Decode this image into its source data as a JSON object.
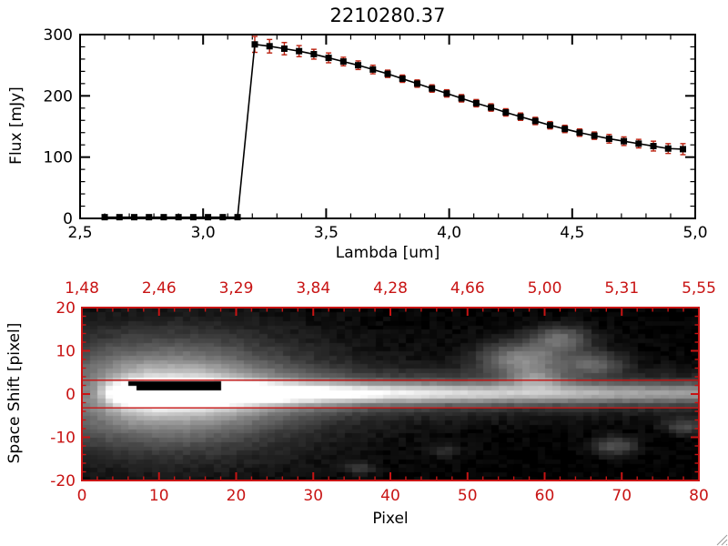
{
  "window": {
    "background": "#ffffff"
  },
  "colors": {
    "axis_black": "#000000",
    "axis_red": "#c81414",
    "errorbar_red": "#bb2211"
  },
  "chart_data": [
    {
      "type": "line",
      "title": "2210280.37",
      "xlabel": "Lambda [um]",
      "ylabel": "Flux [mJy]",
      "xlim": [
        2.5,
        5.0
      ],
      "ylim": [
        0,
        300
      ],
      "grid": false,
      "legend": "none",
      "marker": "filled-square",
      "line_color": "#000000",
      "marker_color": "#000000",
      "errorbar_color": "#bb2211",
      "xticks": {
        "values": [
          2.5,
          3.0,
          3.5,
          4.0,
          4.5,
          5.0
        ],
        "labels": [
          "2,5",
          "3,0",
          "3,5",
          "4,0",
          "4,5",
          "5,0"
        ]
      },
      "yticks": {
        "values": [
          0,
          100,
          200,
          300
        ],
        "labels": [
          "0",
          "100",
          "200",
          "300"
        ]
      },
      "x_minor_step": 0.1,
      "y_minor_step": 20,
      "x": [
        2.6,
        2.66,
        2.72,
        2.78,
        2.84,
        2.9,
        2.96,
        3.02,
        3.08,
        3.14,
        3.21,
        3.27,
        3.33,
        3.39,
        3.45,
        3.51,
        3.57,
        3.63,
        3.69,
        3.75,
        3.81,
        3.87,
        3.93,
        3.99,
        4.05,
        4.11,
        4.17,
        4.23,
        4.29,
        4.35,
        4.41,
        4.47,
        4.53,
        4.59,
        4.65,
        4.71,
        4.77,
        4.83,
        4.89,
        4.95
      ],
      "y": [
        2,
        2,
        2,
        2,
        2,
        2,
        2,
        2,
        2,
        2,
        284,
        281,
        277,
        273,
        268,
        262,
        256,
        250,
        243,
        236,
        228,
        220,
        212,
        204,
        196,
        188,
        181,
        173,
        166,
        159,
        152,
        146,
        140,
        135,
        130,
        126,
        122,
        118,
        114,
        113
      ],
      "yerr": [
        3,
        3,
        3,
        3,
        3,
        3,
        3,
        3,
        3,
        3,
        13,
        11,
        10,
        9,
        8,
        8,
        7,
        7,
        7,
        6,
        6,
        6,
        6,
        6,
        6,
        6,
        6,
        6,
        6,
        6,
        6,
        6,
        6,
        6,
        7,
        7,
        7,
        8,
        8,
        9
      ]
    },
    {
      "type": "heatmap",
      "title": "",
      "xlabel": "Pixel",
      "ylabel": "Space Shift [pixel]",
      "xlim": [
        0,
        80
      ],
      "ylim": [
        -20,
        20
      ],
      "colormap": "grayscale",
      "axis_color": "#c81414",
      "xticks": {
        "values": [
          0,
          10,
          20,
          30,
          40,
          50,
          60,
          70,
          80
        ],
        "labels": [
          "0",
          "10",
          "20",
          "30",
          "40",
          "50",
          "60",
          "70",
          "80"
        ]
      },
      "yticks": {
        "values": [
          -20,
          -10,
          0,
          10,
          20
        ],
        "labels": [
          "-20",
          "-10",
          "0",
          "10",
          "20"
        ]
      },
      "x_minor_step": 2,
      "y_minor_step": 2,
      "top_axis_labels": [
        "1,48",
        "2,46",
        "3,29",
        "3,84",
        "4,28",
        "4,66",
        "5,00",
        "5,31",
        "5,55"
      ],
      "aperture_lines": [
        3.2,
        -3.2
      ],
      "trace_model": {
        "center_y": 0.3,
        "core_sigma": 1.6,
        "mid_sigma": 3.6,
        "mid_amp_frac": 0.35,
        "halo_sigma": 7.5,
        "halo_x_center": 11,
        "halo_x_sigma": 10,
        "halo_amp": 0.55,
        "outer_halo_amp": 0.17,
        "outer_halo_x_sigma": 18,
        "outer_halo_y_sigma": 11,
        "gamma": 0.85,
        "core_profile": [
          [
            0,
            0
          ],
          [
            2,
            0.05
          ],
          [
            4,
            0.45
          ],
          [
            6,
            0.8
          ],
          [
            8,
            0.98
          ],
          [
            16,
            1.0
          ],
          [
            22,
            0.9
          ],
          [
            30,
            0.78
          ],
          [
            40,
            0.68
          ],
          [
            50,
            0.6
          ],
          [
            60,
            0.53
          ],
          [
            70,
            0.46
          ],
          [
            80,
            0.41
          ]
        ]
      },
      "saturated_black_regions": [
        {
          "x0": 7.0,
          "x1": 15.0,
          "y0": 0.9,
          "y1": 3.1
        },
        {
          "x0": 9.0,
          "x1": 18.0,
          "y0": 1.8,
          "y1": 3.0
        },
        {
          "x0": 5.8,
          "x1": 7.0,
          "y0": 1.6,
          "y1": 2.8
        },
        {
          "x0": 15.0,
          "x1": 17.5,
          "y0": 0.9,
          "y1": 1.8
        }
      ],
      "faint_blobs": [
        {
          "x": 57.0,
          "y": 8.0,
          "sx": 3.5,
          "sy": 2.5,
          "amp": 0.38
        },
        {
          "x": 62.0,
          "y": 13.0,
          "sx": 2.5,
          "sy": 2.0,
          "amp": 0.3
        },
        {
          "x": 66.5,
          "y": 7.0,
          "sx": 2.5,
          "sy": 1.8,
          "amp": 0.26
        },
        {
          "x": 59.0,
          "y": 3.5,
          "sx": 2.5,
          "sy": 1.5,
          "amp": 0.3
        },
        {
          "x": 60.0,
          "y": 9.0,
          "sx": 6.0,
          "sy": 4.0,
          "amp": 0.12
        },
        {
          "x": 69.0,
          "y": -12.0,
          "sx": 2.0,
          "sy": 1.5,
          "amp": 0.26
        },
        {
          "x": 78.0,
          "y": -7.5,
          "sx": 1.8,
          "sy": 1.3,
          "amp": 0.22
        },
        {
          "x": 36.0,
          "y": -17.0,
          "sx": 1.4,
          "sy": 1.0,
          "amp": 0.16
        },
        {
          "x": 47.0,
          "y": -13.0,
          "sx": 1.5,
          "sy": 1.0,
          "amp": 0.13
        }
      ]
    }
  ]
}
